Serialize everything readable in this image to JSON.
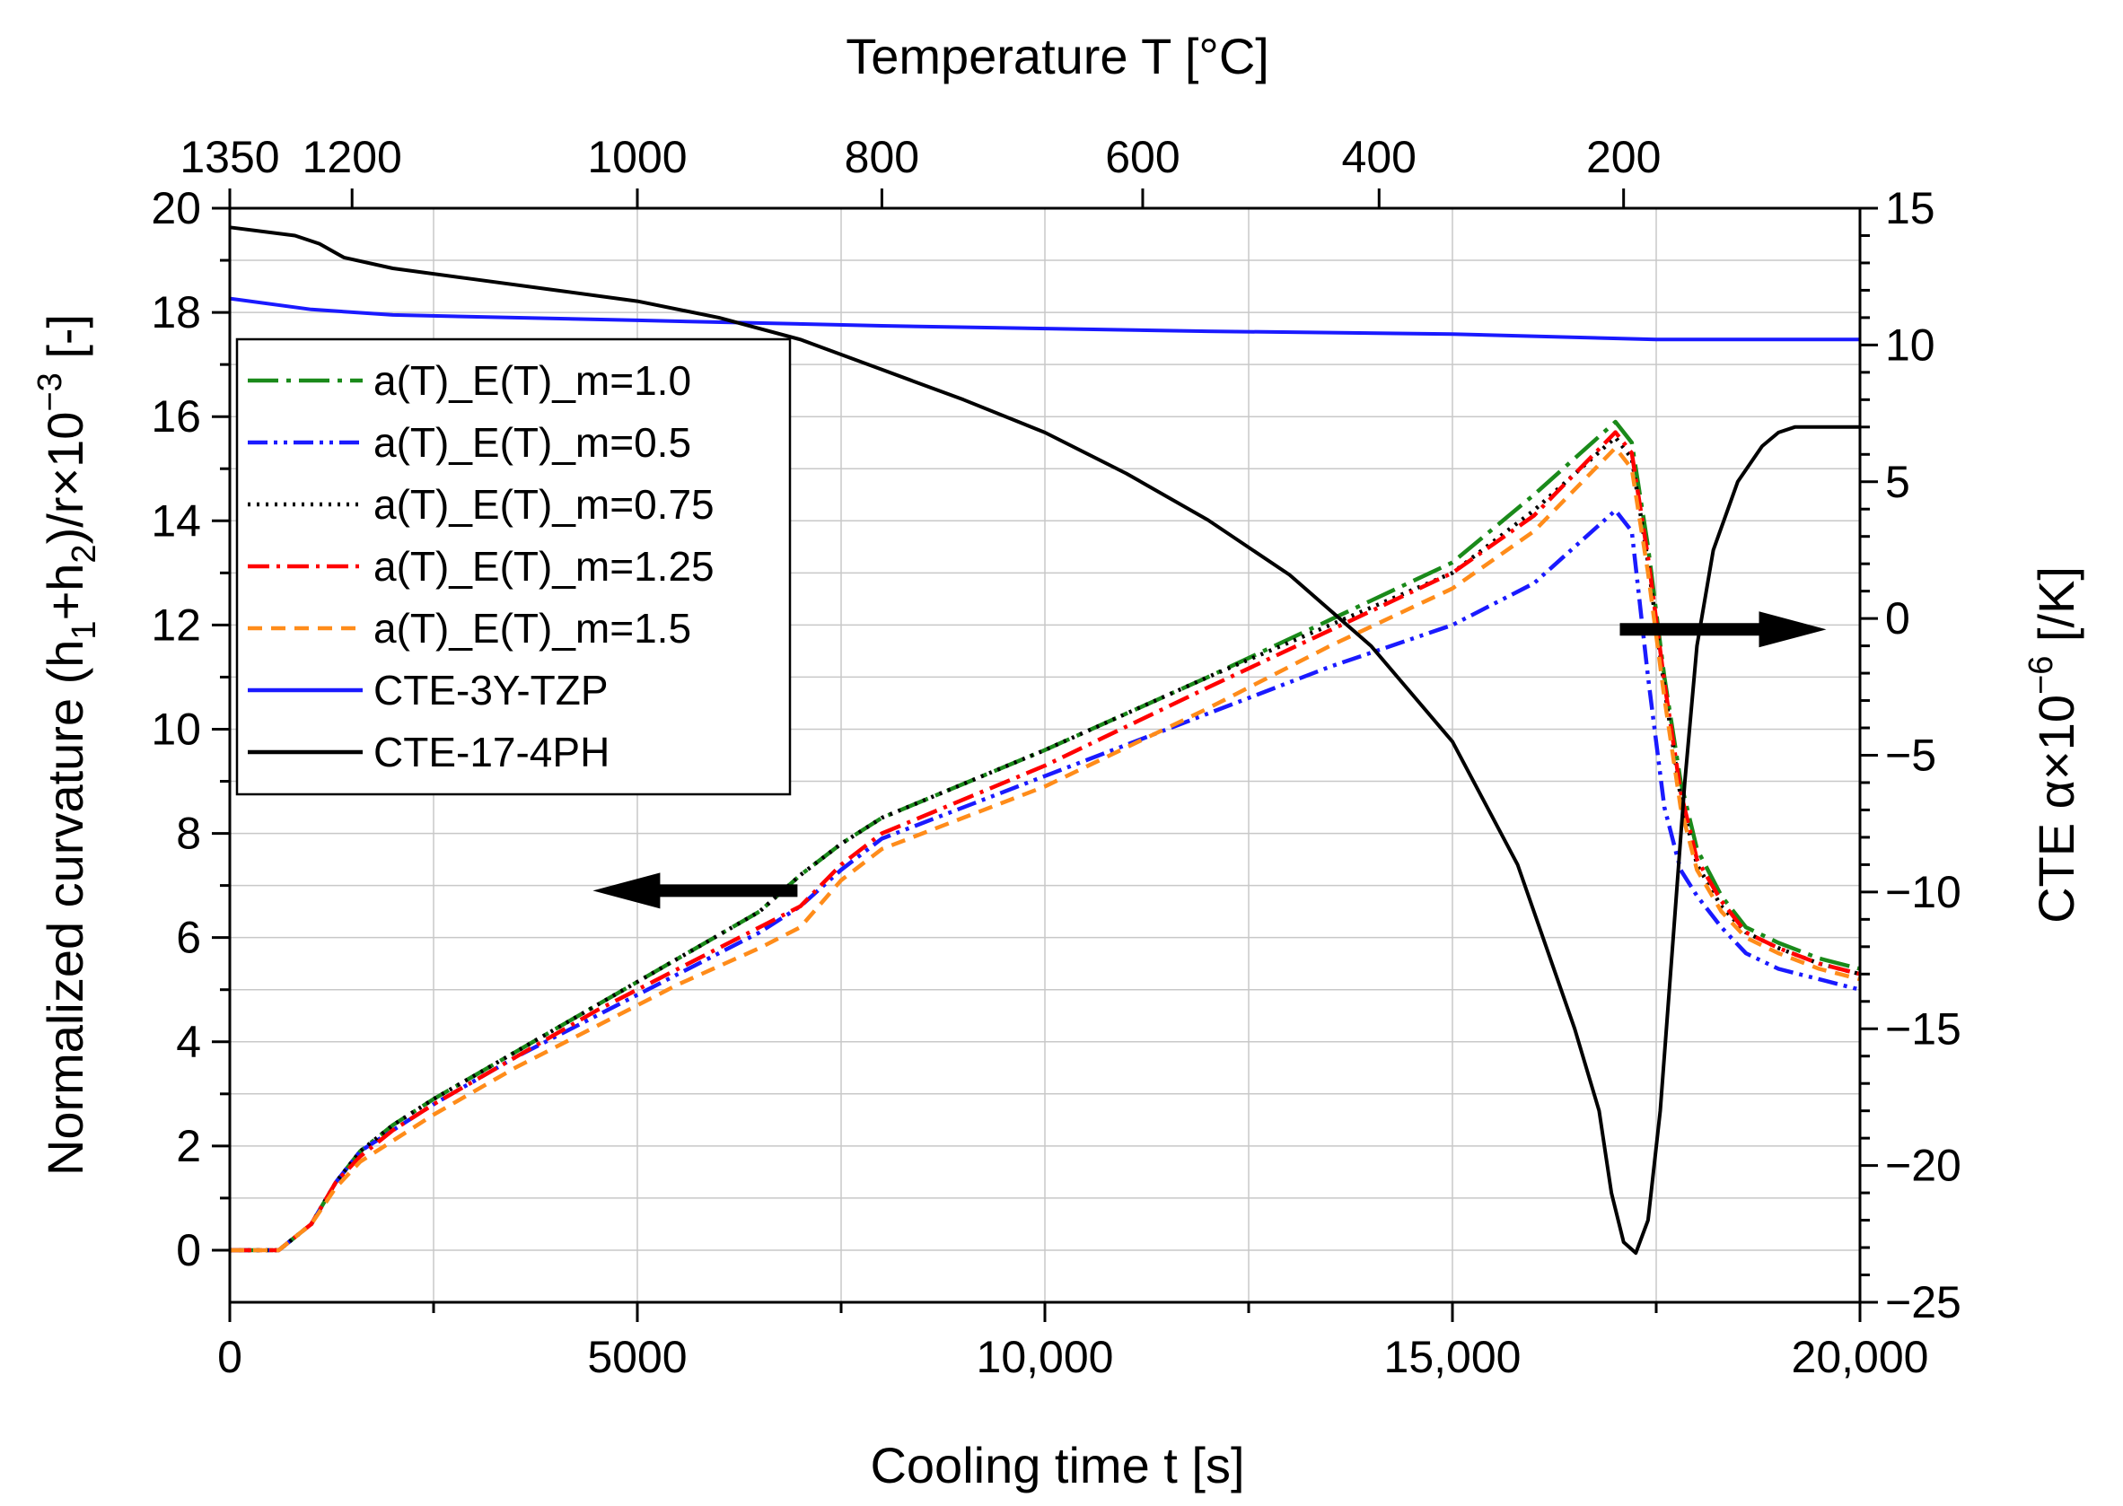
{
  "chart_data": {
    "type": "line",
    "axes": {
      "x_bottom": {
        "label": "Cooling time t [s]",
        "range": [
          0,
          20000
        ],
        "ticks": [
          0,
          5000,
          10000,
          15000,
          20000
        ],
        "tick_labels": [
          "0",
          "5000",
          "10,000",
          "15,000",
          "20,000"
        ]
      },
      "x_top": {
        "label": "Temperature T [°C]",
        "ticks": [
          {
            "t": 0,
            "label": "1350"
          },
          {
            "t": 1500,
            "label": "1200"
          },
          {
            "t": 5000,
            "label": "1000"
          },
          {
            "t": 8000,
            "label": "800"
          },
          {
            "t": 11200,
            "label": "600"
          },
          {
            "t": 14100,
            "label": "400"
          },
          {
            "t": 17100,
            "label": "200"
          }
        ]
      },
      "y_left": {
        "label_parts": [
          "Normalized curvature (h",
          "1",
          "+h",
          "2",
          ")/r×10",
          "−3",
          " [-]"
        ],
        "range": [
          -1,
          20
        ],
        "ticks": [
          0,
          2,
          4,
          6,
          8,
          10,
          12,
          14,
          16,
          18,
          20
        ],
        "tick_labels": [
          "0",
          "2",
          "4",
          "6",
          "8",
          "10",
          "12",
          "14",
          "16",
          "18",
          "20"
        ]
      },
      "y_right": {
        "label_parts": [
          "CTE α×10",
          "−6",
          " [/K]"
        ],
        "range": [
          -25,
          15
        ],
        "ticks": [
          15,
          10,
          5,
          0,
          -5,
          -10,
          -15,
          -20,
          -25
        ],
        "tick_labels": [
          "15",
          "10",
          "5",
          "0",
          "−5",
          "−10",
          "−15",
          "−20",
          "−25"
        ]
      }
    },
    "series": [
      {
        "name": "a(T)_E(T)_m=1.0",
        "axis": "left",
        "color": "#1a8a1a",
        "dash": "longdot",
        "x": [
          0,
          600,
          1000,
          1300,
          1600,
          2000,
          2500,
          3500,
          4500,
          5500,
          6500,
          7000,
          7500,
          8000,
          10000,
          12000,
          13500,
          15000,
          16000,
          17000,
          17200,
          17400,
          17600,
          17800,
          18000,
          18300,
          18600,
          19000,
          19500,
          20000
        ],
        "y": [
          0,
          0,
          0.5,
          1.3,
          1.9,
          2.4,
          2.9,
          3.8,
          4.7,
          5.6,
          6.5,
          7.2,
          7.8,
          8.3,
          9.6,
          11.0,
          12.1,
          13.2,
          14.5,
          15.9,
          15.5,
          13.5,
          11.0,
          9.0,
          7.7,
          6.8,
          6.2,
          5.9,
          5.6,
          5.4
        ]
      },
      {
        "name": "a(T)_E(T)_m=0.5",
        "axis": "left",
        "color": "#1a1aff",
        "dash": "dashdotdot",
        "x": [
          0,
          600,
          1000,
          1300,
          1600,
          2000,
          2500,
          3500,
          4500,
          5500,
          6500,
          7000,
          7500,
          8000,
          10000,
          12000,
          13500,
          15000,
          16000,
          17000,
          17200,
          17400,
          17600,
          17800,
          18000,
          18300,
          18600,
          19000,
          19500,
          20000
        ],
        "y": [
          0,
          0,
          0.5,
          1.3,
          1.9,
          2.3,
          2.8,
          3.7,
          4.5,
          5.3,
          6.1,
          6.6,
          7.3,
          7.9,
          9.1,
          10.3,
          11.2,
          12.0,
          12.8,
          14.2,
          13.8,
          11.0,
          8.5,
          7.3,
          6.8,
          6.2,
          5.7,
          5.4,
          5.2,
          5.0
        ]
      },
      {
        "name": "a(T)_E(T)_m=0.75",
        "axis": "left",
        "color": "#000000",
        "dash": "dot",
        "x": [
          0,
          600,
          1000,
          1300,
          1600,
          2000,
          2500,
          3500,
          4500,
          5500,
          6500,
          7000,
          7500,
          8000,
          10000,
          12000,
          13500,
          15000,
          16000,
          17000,
          17200,
          17400,
          17600,
          17800,
          18000,
          18300,
          18600,
          19000,
          19500,
          20000
        ],
        "y": [
          0,
          0,
          0.5,
          1.3,
          1.9,
          2.4,
          2.9,
          3.8,
          4.7,
          5.6,
          6.5,
          7.2,
          7.8,
          8.3,
          9.6,
          11.0,
          12.0,
          13.0,
          14.2,
          15.6,
          15.2,
          13.2,
          10.8,
          8.7,
          7.4,
          6.6,
          6.1,
          5.8,
          5.5,
          5.3
        ]
      },
      {
        "name": "a(T)_E(T)_m=1.25",
        "axis": "left",
        "color": "#ff0000",
        "dash": "dashdot",
        "x": [
          0,
          600,
          1000,
          1300,
          1600,
          2000,
          2500,
          3500,
          4500,
          5500,
          6500,
          7000,
          7500,
          8000,
          10000,
          12000,
          13500,
          15000,
          16000,
          17000,
          17200,
          17400,
          17600,
          17800,
          18000,
          18300,
          18600,
          19000,
          19500,
          20000
        ],
        "y": [
          0,
          0,
          0.5,
          1.3,
          1.8,
          2.3,
          2.8,
          3.7,
          4.6,
          5.4,
          6.2,
          6.6,
          7.4,
          8.0,
          9.3,
          10.8,
          11.9,
          13.0,
          14.1,
          15.7,
          15.3,
          13.3,
          10.9,
          8.8,
          7.5,
          6.7,
          6.1,
          5.8,
          5.5,
          5.3
        ]
      },
      {
        "name": "a(T)_E(T)_m=1.5",
        "axis": "left",
        "color": "#ff8c1a",
        "dash": "dash",
        "x": [
          0,
          600,
          1000,
          1300,
          1600,
          2000,
          2500,
          3500,
          4500,
          5500,
          6500,
          7000,
          7500,
          8000,
          10000,
          12000,
          13500,
          15000,
          16000,
          17000,
          17200,
          17400,
          17600,
          17800,
          18000,
          18300,
          18600,
          19000,
          19500,
          20000
        ],
        "y": [
          0,
          0,
          0.5,
          1.2,
          1.7,
          2.1,
          2.6,
          3.5,
          4.3,
          5.1,
          5.8,
          6.2,
          7.1,
          7.7,
          8.9,
          10.4,
          11.6,
          12.7,
          13.8,
          15.4,
          15.0,
          13.0,
          10.6,
          8.5,
          7.3,
          6.5,
          6.0,
          5.7,
          5.4,
          5.2
        ]
      },
      {
        "name": "CTE-3Y-TZP",
        "axis": "right",
        "color": "#1a1aff",
        "dash": "solid",
        "x": [
          0,
          1000,
          2000,
          5000,
          8000,
          12000,
          15000,
          17500,
          20000
        ],
        "y": [
          11.7,
          11.3,
          11.1,
          10.9,
          10.7,
          10.5,
          10.4,
          10.2,
          10.2
        ]
      },
      {
        "name": "CTE-17-4PH",
        "axis": "right",
        "color": "#000000",
        "dash": "solid",
        "x": [
          0,
          800,
          1100,
          1400,
          2000,
          3000,
          4000,
          5000,
          6000,
          7000,
          8000,
          9000,
          10000,
          11000,
          12000,
          13000,
          14000,
          15000,
          15800,
          16500,
          16800,
          16950,
          17100,
          17250,
          17400,
          17550,
          17700,
          17850,
          18000,
          18200,
          18500,
          18800,
          19000,
          19200,
          20000
        ],
        "y": [
          14.3,
          14.0,
          13.7,
          13.2,
          12.8,
          12.4,
          12.0,
          11.6,
          11.0,
          10.2,
          9.1,
          8.0,
          6.8,
          5.3,
          3.6,
          1.6,
          -1.0,
          -4.5,
          -9.0,
          -15.0,
          -18.0,
          -21.0,
          -22.8,
          -23.2,
          -22.0,
          -18.0,
          -12.0,
          -6.0,
          -1.0,
          2.5,
          5.0,
          6.3,
          6.8,
          7.0,
          7.0
        ]
      }
    ],
    "legend": {
      "placement": "upper-left"
    },
    "annotations": [
      {
        "type": "arrow",
        "direction": "left",
        "target_axis": "left",
        "at_x": 5500,
        "at_y": 6.9
      },
      {
        "type": "arrow",
        "direction": "right",
        "target_axis": "right",
        "at_x": 18100,
        "at_y": -0.4
      }
    ],
    "grid": true
  }
}
